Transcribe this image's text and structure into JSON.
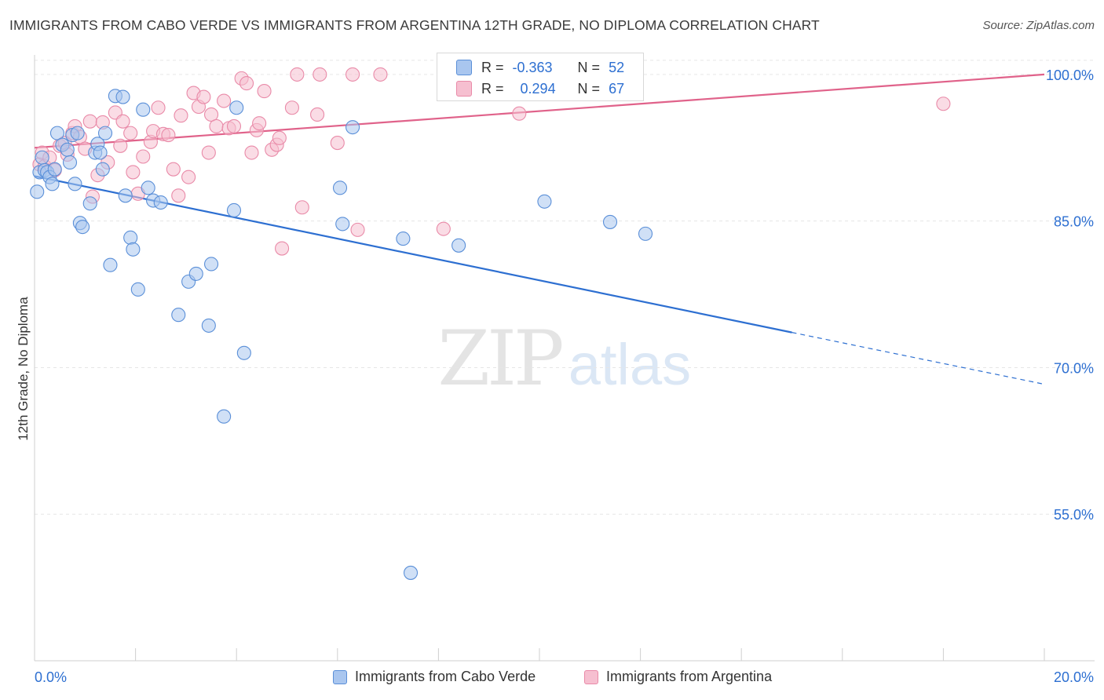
{
  "title": "IMMIGRANTS FROM CABO VERDE VS IMMIGRANTS FROM ARGENTINA 12TH GRADE, NO DIPLOMA CORRELATION CHART",
  "source": "Source: ZipAtlas.com",
  "watermark": {
    "zip": "ZIP",
    "atlas": "atlas"
  },
  "legend_box": {
    "rows": [
      {
        "r_label": "R =",
        "r_value": "-0.363",
        "n_label": "N =",
        "n_value": "52"
      },
      {
        "r_label": "R =",
        "r_value": "0.294",
        "n_label": "N =",
        "n_value": "67"
      }
    ]
  },
  "chart_data": {
    "type": "scatter",
    "xlabel": "",
    "ylabel": "12th Grade, No Diploma",
    "xlim": [
      0,
      20
    ],
    "ylim": [
      40,
      102
    ],
    "x_tick_labels": [
      "0.0%",
      "20.0%"
    ],
    "y_ticks": [
      55,
      70,
      85,
      100
    ],
    "y_tick_labels": [
      "55.0%",
      "70.0%",
      "85.0%",
      "100.0%"
    ],
    "grid": true,
    "legend_position": "bottom-center",
    "colors": {
      "cabo_verde_fill": "#a9c6ef",
      "cabo_verde_stroke": "#5a8fd8",
      "cabo_verde_line": "#2d6fd1",
      "argentina_fill": "#f6bfd0",
      "argentina_stroke": "#e98aa8",
      "argentina_line": "#e0628a",
      "value_text": "#2d6fd1",
      "grid": "#e6e6e6"
    },
    "series": [
      {
        "name": "Immigrants from Cabo Verde",
        "color": "#5a8fd8",
        "r": -0.363,
        "n": 52,
        "trend": {
          "x0": 0.0,
          "y0": 89.6,
          "x1": 15.0,
          "y1": 73.6,
          "dash_to_x": 20.0,
          "dash_to_y": 68.3
        },
        "points": [
          [
            0.05,
            88.0
          ],
          [
            0.1,
            90.0
          ],
          [
            0.15,
            91.5
          ],
          [
            0.2,
            90.2
          ],
          [
            0.25,
            90.0
          ],
          [
            0.3,
            89.5
          ],
          [
            0.35,
            88.8
          ],
          [
            0.4,
            90.3
          ],
          [
            0.45,
            94.0
          ],
          [
            0.55,
            92.8
          ],
          [
            0.65,
            92.3
          ],
          [
            0.7,
            91.0
          ],
          [
            0.75,
            93.8
          ],
          [
            0.8,
            88.8
          ],
          [
            0.85,
            94.0
          ],
          [
            0.9,
            84.8
          ],
          [
            0.95,
            84.4
          ],
          [
            1.1,
            86.8
          ],
          [
            1.2,
            92.0
          ],
          [
            1.25,
            92.9
          ],
          [
            1.3,
            92.0
          ],
          [
            1.35,
            90.3
          ],
          [
            1.4,
            94.0
          ],
          [
            1.5,
            80.5
          ],
          [
            1.6,
            97.8
          ],
          [
            1.75,
            97.7
          ],
          [
            1.8,
            87.6
          ],
          [
            1.9,
            83.3
          ],
          [
            1.95,
            82.1
          ],
          [
            2.05,
            78.0
          ],
          [
            2.15,
            96.4
          ],
          [
            2.25,
            88.4
          ],
          [
            2.35,
            87.1
          ],
          [
            2.5,
            86.9
          ],
          [
            2.85,
            75.4
          ],
          [
            3.05,
            78.8
          ],
          [
            3.2,
            79.6
          ],
          [
            3.45,
            74.3
          ],
          [
            3.5,
            80.6
          ],
          [
            3.75,
            65.0
          ],
          [
            3.95,
            86.1
          ],
          [
            4.0,
            96.6
          ],
          [
            4.15,
            71.5
          ],
          [
            6.05,
            88.4
          ],
          [
            6.1,
            84.7
          ],
          [
            6.3,
            94.6
          ],
          [
            7.3,
            83.2
          ],
          [
            7.45,
            49.0
          ],
          [
            8.4,
            82.5
          ],
          [
            10.1,
            87.0
          ],
          [
            11.4,
            84.9
          ],
          [
            12.1,
            83.7
          ]
        ]
      },
      {
        "name": "Immigrants from Argentina",
        "color": "#e98aa8",
        "r": 0.294,
        "n": 67,
        "trend": {
          "x0": 0.0,
          "y0": 92.5,
          "x1": 20.0,
          "y1": 100.0
        },
        "points": [
          [
            0.1,
            90.8
          ],
          [
            0.15,
            92.0
          ],
          [
            0.2,
            90.6
          ],
          [
            0.3,
            91.5
          ],
          [
            0.4,
            90.2
          ],
          [
            0.5,
            92.7
          ],
          [
            0.6,
            93.0
          ],
          [
            0.65,
            91.8
          ],
          [
            0.75,
            94.0
          ],
          [
            0.8,
            94.7
          ],
          [
            0.9,
            93.6
          ],
          [
            1.0,
            92.4
          ],
          [
            1.1,
            95.2
          ],
          [
            1.15,
            87.5
          ],
          [
            1.25,
            89.7
          ],
          [
            1.35,
            95.1
          ],
          [
            1.45,
            91.0
          ],
          [
            1.6,
            96.1
          ],
          [
            1.7,
            92.7
          ],
          [
            1.75,
            95.2
          ],
          [
            1.9,
            94.0
          ],
          [
            1.95,
            90.0
          ],
          [
            2.05,
            87.8
          ],
          [
            2.15,
            91.6
          ],
          [
            2.3,
            93.1
          ],
          [
            2.35,
            94.2
          ],
          [
            2.45,
            96.6
          ],
          [
            2.55,
            93.9
          ],
          [
            2.65,
            93.8
          ],
          [
            2.75,
            90.3
          ],
          [
            2.85,
            87.6
          ],
          [
            2.9,
            95.8
          ],
          [
            3.05,
            89.5
          ],
          [
            3.15,
            98.1
          ],
          [
            3.25,
            96.7
          ],
          [
            3.35,
            97.7
          ],
          [
            3.45,
            92.0
          ],
          [
            3.5,
            95.9
          ],
          [
            3.6,
            94.7
          ],
          [
            3.75,
            97.3
          ],
          [
            3.85,
            94.5
          ],
          [
            3.95,
            94.7
          ],
          [
            4.1,
            99.6
          ],
          [
            4.2,
            99.1
          ],
          [
            4.3,
            92.0
          ],
          [
            4.4,
            94.3
          ],
          [
            4.45,
            95.0
          ],
          [
            4.55,
            98.3
          ],
          [
            4.7,
            92.3
          ],
          [
            4.8,
            92.8
          ],
          [
            4.85,
            93.5
          ],
          [
            4.9,
            82.2
          ],
          [
            5.1,
            96.6
          ],
          [
            5.2,
            100.0
          ],
          [
            5.3,
            86.4
          ],
          [
            5.6,
            95.9
          ],
          [
            5.65,
            100.0
          ],
          [
            6.0,
            93.0
          ],
          [
            6.3,
            100.0
          ],
          [
            6.4,
            84.1
          ],
          [
            6.85,
            100.0
          ],
          [
            8.1,
            84.2
          ],
          [
            8.15,
            100.0
          ],
          [
            8.4,
            100.0
          ],
          [
            8.7,
            99.8
          ],
          [
            9.6,
            96.0
          ],
          [
            18.0,
            97.0
          ]
        ]
      }
    ]
  },
  "bottom_legend": [
    {
      "label": "Immigrants from Cabo Verde"
    },
    {
      "label": "Immigrants from Argentina"
    }
  ]
}
